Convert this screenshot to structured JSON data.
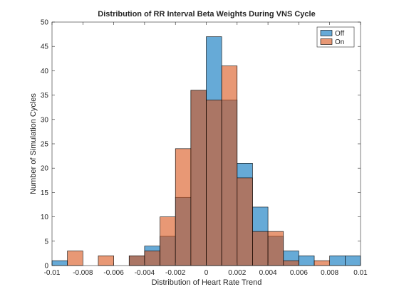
{
  "chart_data": {
    "type": "bar",
    "subtype": "overlaid-histogram",
    "title": "Distribution of RR Interval Beta Weights During VNS Cycle",
    "xlabel": "Distribution of Heart Rate Trend",
    "ylabel": "Number of Simulation Cycles",
    "xlim": [
      -0.01,
      0.01
    ],
    "ylim": [
      0,
      50
    ],
    "xticks": [
      -0.01,
      -0.008,
      -0.006,
      -0.004,
      -0.002,
      0,
      0.002,
      0.004,
      0.006,
      0.008,
      0.01
    ],
    "xtick_labels": [
      "-0.01",
      "-0.008",
      "-0.006",
      "-0.004",
      "-0.002",
      "0",
      "0.002",
      "0.004",
      "0.006",
      "0.008",
      "0.01"
    ],
    "yticks": [
      0,
      5,
      10,
      15,
      20,
      25,
      30,
      35,
      40,
      45,
      50
    ],
    "yticks_labels": [
      "0",
      "5",
      "10",
      "15",
      "20",
      "25",
      "30",
      "35",
      "40",
      "45",
      "50"
    ],
    "grid": false,
    "legend_position": "top-right",
    "bin_edges": [
      -0.01,
      -0.009,
      -0.008,
      -0.007,
      -0.006,
      -0.005,
      -0.004,
      -0.003,
      -0.002,
      -0.001,
      0,
      0.001,
      0.002,
      0.003,
      0.004,
      0.005,
      0.006,
      0.007,
      0.008,
      0.009,
      0.01
    ],
    "series": [
      {
        "name": "Off",
        "color": "#0072BD",
        "values": [
          1,
          0,
          0,
          0,
          0,
          2,
          4,
          6,
          14,
          36,
          47,
          34,
          21,
          12,
          6,
          3,
          2,
          0,
          2,
          2
        ]
      },
      {
        "name": "On",
        "color": "#D95319",
        "values": [
          0,
          3,
          0,
          2,
          0,
          2,
          3,
          10,
          24,
          36,
          34,
          41,
          18,
          7,
          7,
          1,
          0,
          1,
          0,
          0
        ]
      }
    ],
    "face_alpha": 0.6
  }
}
